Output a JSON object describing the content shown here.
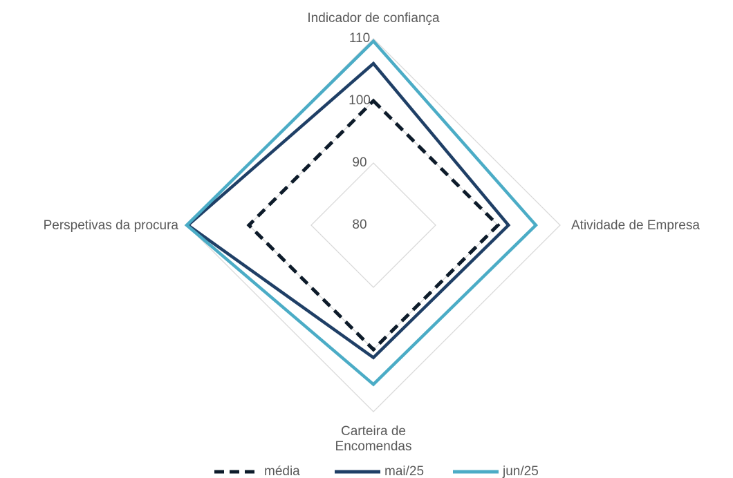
{
  "chart_data": {
    "type": "radar",
    "categories": [
      "Indicador de confiança",
      "Atividade de Empresa",
      "Carteira de Encomendas",
      "Perspetivas da procura"
    ],
    "series": [
      {
        "name": "média",
        "color": "#0d1b2a",
        "dashed": true,
        "values": [
          100,
          100,
          100,
          100
        ]
      },
      {
        "name": "mai/25",
        "color": "#1f3f66",
        "dashed": false,
        "values": [
          106,
          101.7,
          101.3,
          109.8
        ]
      },
      {
        "name": "jun/25",
        "color": "#4bacc6",
        "dashed": false,
        "values": [
          109.6,
          106.1,
          105.6,
          110
        ]
      }
    ],
    "rlim": [
      80,
      110
    ],
    "rticks": [
      80,
      90,
      100,
      110
    ],
    "grid": true
  }
}
